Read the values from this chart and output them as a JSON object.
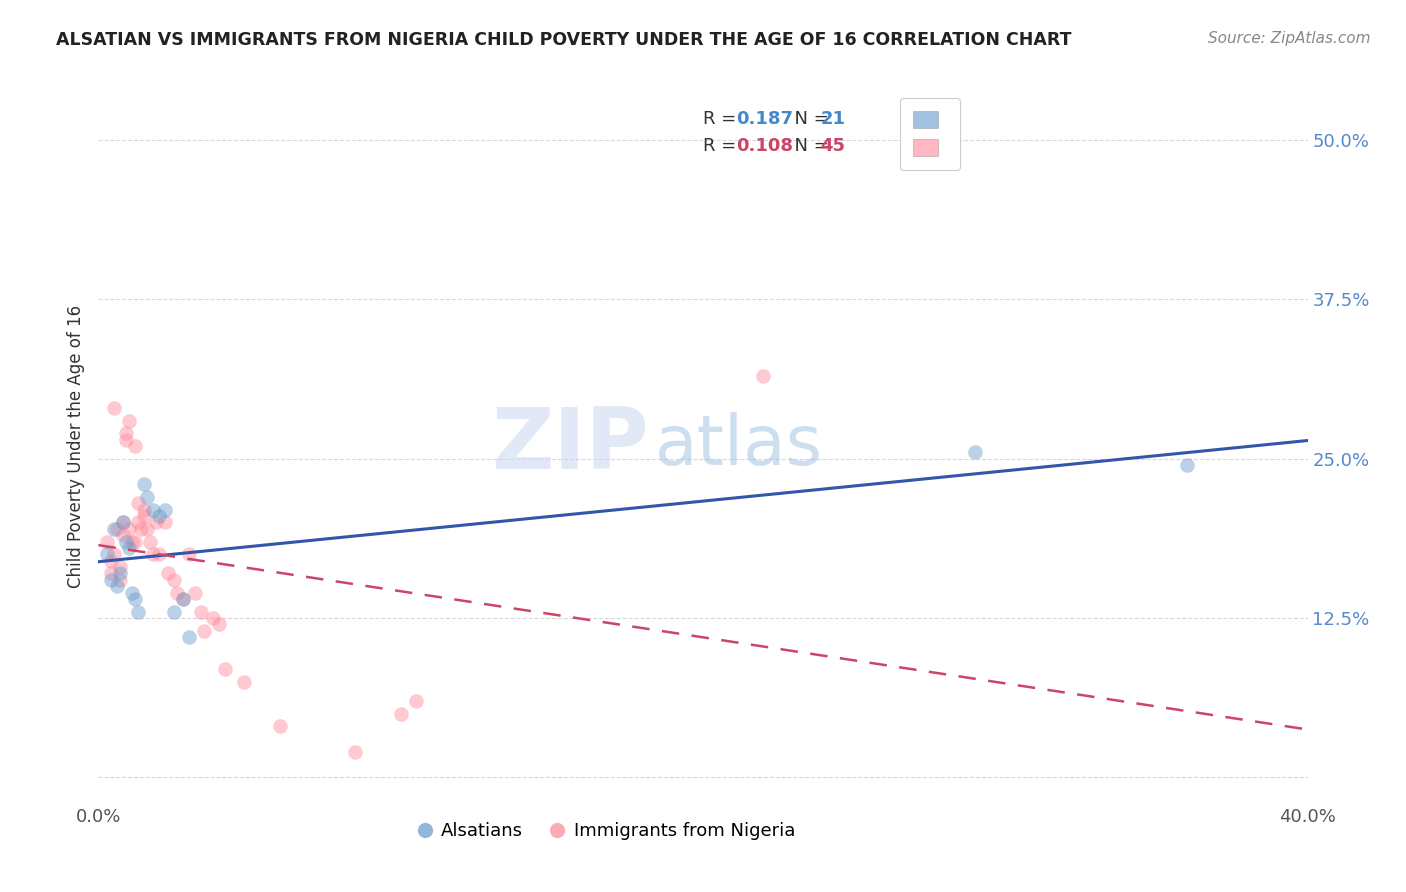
{
  "title": "ALSATIAN VS IMMIGRANTS FROM NIGERIA CHILD POVERTY UNDER THE AGE OF 16 CORRELATION CHART",
  "source": "Source: ZipAtlas.com",
  "ylabel": "Child Poverty Under the Age of 16",
  "xlim": [
    0.0,
    0.4
  ],
  "ylim": [
    -0.02,
    0.54
  ],
  "yticks": [
    0.0,
    0.125,
    0.25,
    0.375,
    0.5
  ],
  "ytick_labels": [
    "",
    "12.5%",
    "25.0%",
    "37.5%",
    "50.0%"
  ],
  "xticks": [
    0.0,
    0.1,
    0.2,
    0.3,
    0.4
  ],
  "xtick_labels": [
    "0.0%",
    "",
    "",
    "",
    "40.0%"
  ],
  "watermark_zip": "ZIP",
  "watermark_atlas": "atlas",
  "legend_r1": "0.187",
  "legend_n1": "21",
  "legend_r2": "0.108",
  "legend_n2": "45",
  "blue_color": "#6699CC",
  "pink_color": "#FF8899",
  "blue_line_color": "#3355AA",
  "pink_line_color": "#CC4466",
  "alsatians_x": [
    0.003,
    0.004,
    0.005,
    0.006,
    0.007,
    0.008,
    0.009,
    0.01,
    0.011,
    0.012,
    0.013,
    0.015,
    0.016,
    0.018,
    0.02,
    0.022,
    0.025,
    0.028,
    0.03,
    0.29,
    0.36
  ],
  "alsatians_y": [
    0.175,
    0.155,
    0.195,
    0.15,
    0.16,
    0.2,
    0.185,
    0.18,
    0.145,
    0.14,
    0.13,
    0.23,
    0.22,
    0.21,
    0.205,
    0.21,
    0.13,
    0.14,
    0.11,
    0.255,
    0.245
  ],
  "nigeria_x": [
    0.003,
    0.004,
    0.004,
    0.005,
    0.005,
    0.006,
    0.007,
    0.007,
    0.008,
    0.008,
    0.009,
    0.009,
    0.01,
    0.01,
    0.011,
    0.012,
    0.012,
    0.013,
    0.013,
    0.014,
    0.015,
    0.015,
    0.016,
    0.017,
    0.018,
    0.019,
    0.02,
    0.022,
    0.023,
    0.025,
    0.026,
    0.028,
    0.03,
    0.032,
    0.034,
    0.035,
    0.038,
    0.04,
    0.042,
    0.048,
    0.06,
    0.085,
    0.1,
    0.105,
    0.22
  ],
  "nigeria_y": [
    0.185,
    0.17,
    0.16,
    0.29,
    0.175,
    0.195,
    0.165,
    0.155,
    0.2,
    0.19,
    0.27,
    0.265,
    0.28,
    0.195,
    0.185,
    0.26,
    0.185,
    0.215,
    0.2,
    0.195,
    0.21,
    0.205,
    0.195,
    0.185,
    0.175,
    0.2,
    0.175,
    0.2,
    0.16,
    0.155,
    0.145,
    0.14,
    0.175,
    0.145,
    0.13,
    0.115,
    0.125,
    0.12,
    0.085,
    0.075,
    0.04,
    0.02,
    0.05,
    0.06,
    0.315
  ],
  "marker_size": 110,
  "marker_alpha": 0.45,
  "background_color": "#ffffff",
  "grid_color": "#d8d8d8"
}
